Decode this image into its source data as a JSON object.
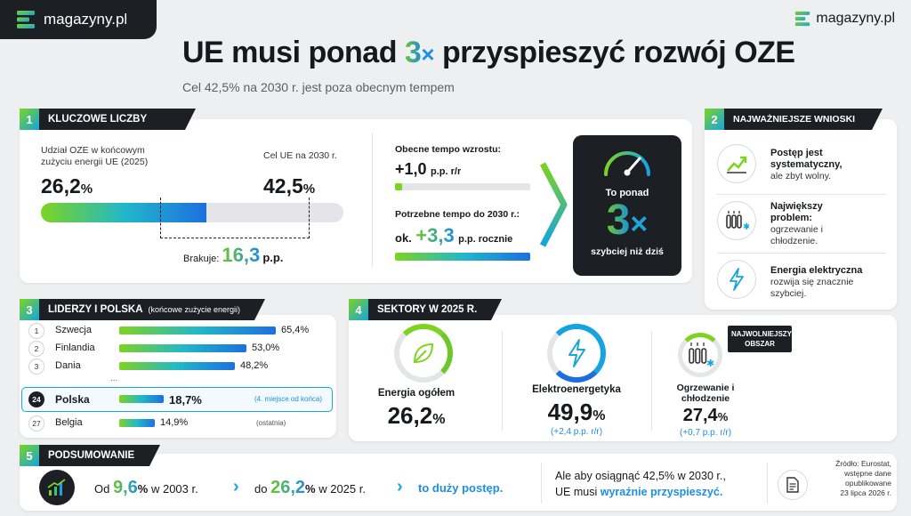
{
  "brand": {
    "name": "magazyny.pl"
  },
  "header": {
    "title_pre": "UE musi ponad ",
    "title_num": "3",
    "title_x": "×",
    "title_post": " przyspieszyć rozwój OZE",
    "subtitle": "Cel 42,5% na 2030 r. jest poza obecnym tempem"
  },
  "s1": {
    "num": "1",
    "title": "KLUCZOWE LICZBY",
    "share_label_1": "Udział OZE w końcowym",
    "share_label_2": "zużyciu energii UE (2025)",
    "share_value": "26,2",
    "pct": "%",
    "target_label": "Cel UE na 2030 r.",
    "target_value": "42,5",
    "missing_label": "Brakuje:",
    "missing_value": "16,3",
    "missing_unit": "p.p.",
    "current_label": "Obecne tempo wzrostu:",
    "current_value": "+1,0",
    "current_unit": "p.p. r/r",
    "needed_label": "Potrzebne tempo do 2030 r.:",
    "needed_prefix": "ok.",
    "needed_value": "+3,3",
    "needed_unit": "p.p. rocznie",
    "box_top": "To ponad",
    "box_num": "3",
    "box_x": "×",
    "box_bottom": "szybciej niż dziś"
  },
  "s2": {
    "num": "2",
    "title": "NAJWAŻNIEJSZE WNIOSKI",
    "items": [
      {
        "bold": "Postęp jest systematyczny,",
        "text": "ale zbyt wolny."
      },
      {
        "bold": "Największy problem:",
        "text": "ogrzewanie i chłodzenie."
      },
      {
        "bold": "Energia elektryczna",
        "text": "rozwija się znacznie szybciej."
      }
    ]
  },
  "s3": {
    "num": "3",
    "title": "LIDERZY I POLSKA",
    "note": "(końcowe zużycie energii)",
    "rows": [
      {
        "rank": "1",
        "country": "Szwecja",
        "value": "65,4%",
        "share": 65.4
      },
      {
        "rank": "2",
        "country": "Finlandia",
        "value": "53,0%",
        "share": 53.0
      },
      {
        "rank": "3",
        "country": "Dania",
        "value": "48,2%",
        "share": 48.2
      },
      {
        "rank": "24",
        "country": "Polska",
        "value": "18,7%",
        "share": 18.7,
        "note": "(4. miejsce od końca)"
      },
      {
        "rank": "27",
        "country": "Belgia",
        "value": "14,9%",
        "share": 14.9,
        "note": "(ostatnia)"
      }
    ],
    "ellipsis": "..."
  },
  "s4": {
    "num": "4",
    "title": "SEKTORY W 2025 R.",
    "badge": "NAJWOLNIEJSZY OBSZAR",
    "sectors": [
      {
        "label": "Energia ogółem",
        "value": "26,2",
        "pct": "%",
        "delta": ""
      },
      {
        "label": "Elektroenergetyka",
        "value": "49,9",
        "pct": "%",
        "delta": "(+2,4 p.p. r/r)"
      },
      {
        "label": "Ogrzewanie i chłodzenie",
        "value": "27,4",
        "pct": "%",
        "delta": "(+0,7 p.p. r/r)"
      }
    ]
  },
  "s5": {
    "num": "5",
    "title": "PODSUMOWANIE",
    "from_pre": "Od",
    "from_value": "9,6",
    "from_pct": "%",
    "from_post": "w 2003 r.",
    "to_pre": "do",
    "to_value": "26,2",
    "to_pct": "%",
    "to_post": "w 2025 r.",
    "verdict": "to duży postęp.",
    "but_1": "Ale aby osiągnąć 42,5% w 2030 r.,",
    "but_2a": "UE musi",
    "but_2b": "wyraźnie przyspieszyć."
  },
  "source": {
    "l1": "Źródło: Eurostat,",
    "l2": "wstępne dane",
    "l3": "opublikowane",
    "l4": "23 lipca 2026 r."
  },
  "colors": {
    "dark": "#1c1f24",
    "green": "#7ed321",
    "blue": "#1d6fe0",
    "cyan": "#1aa6d8"
  }
}
